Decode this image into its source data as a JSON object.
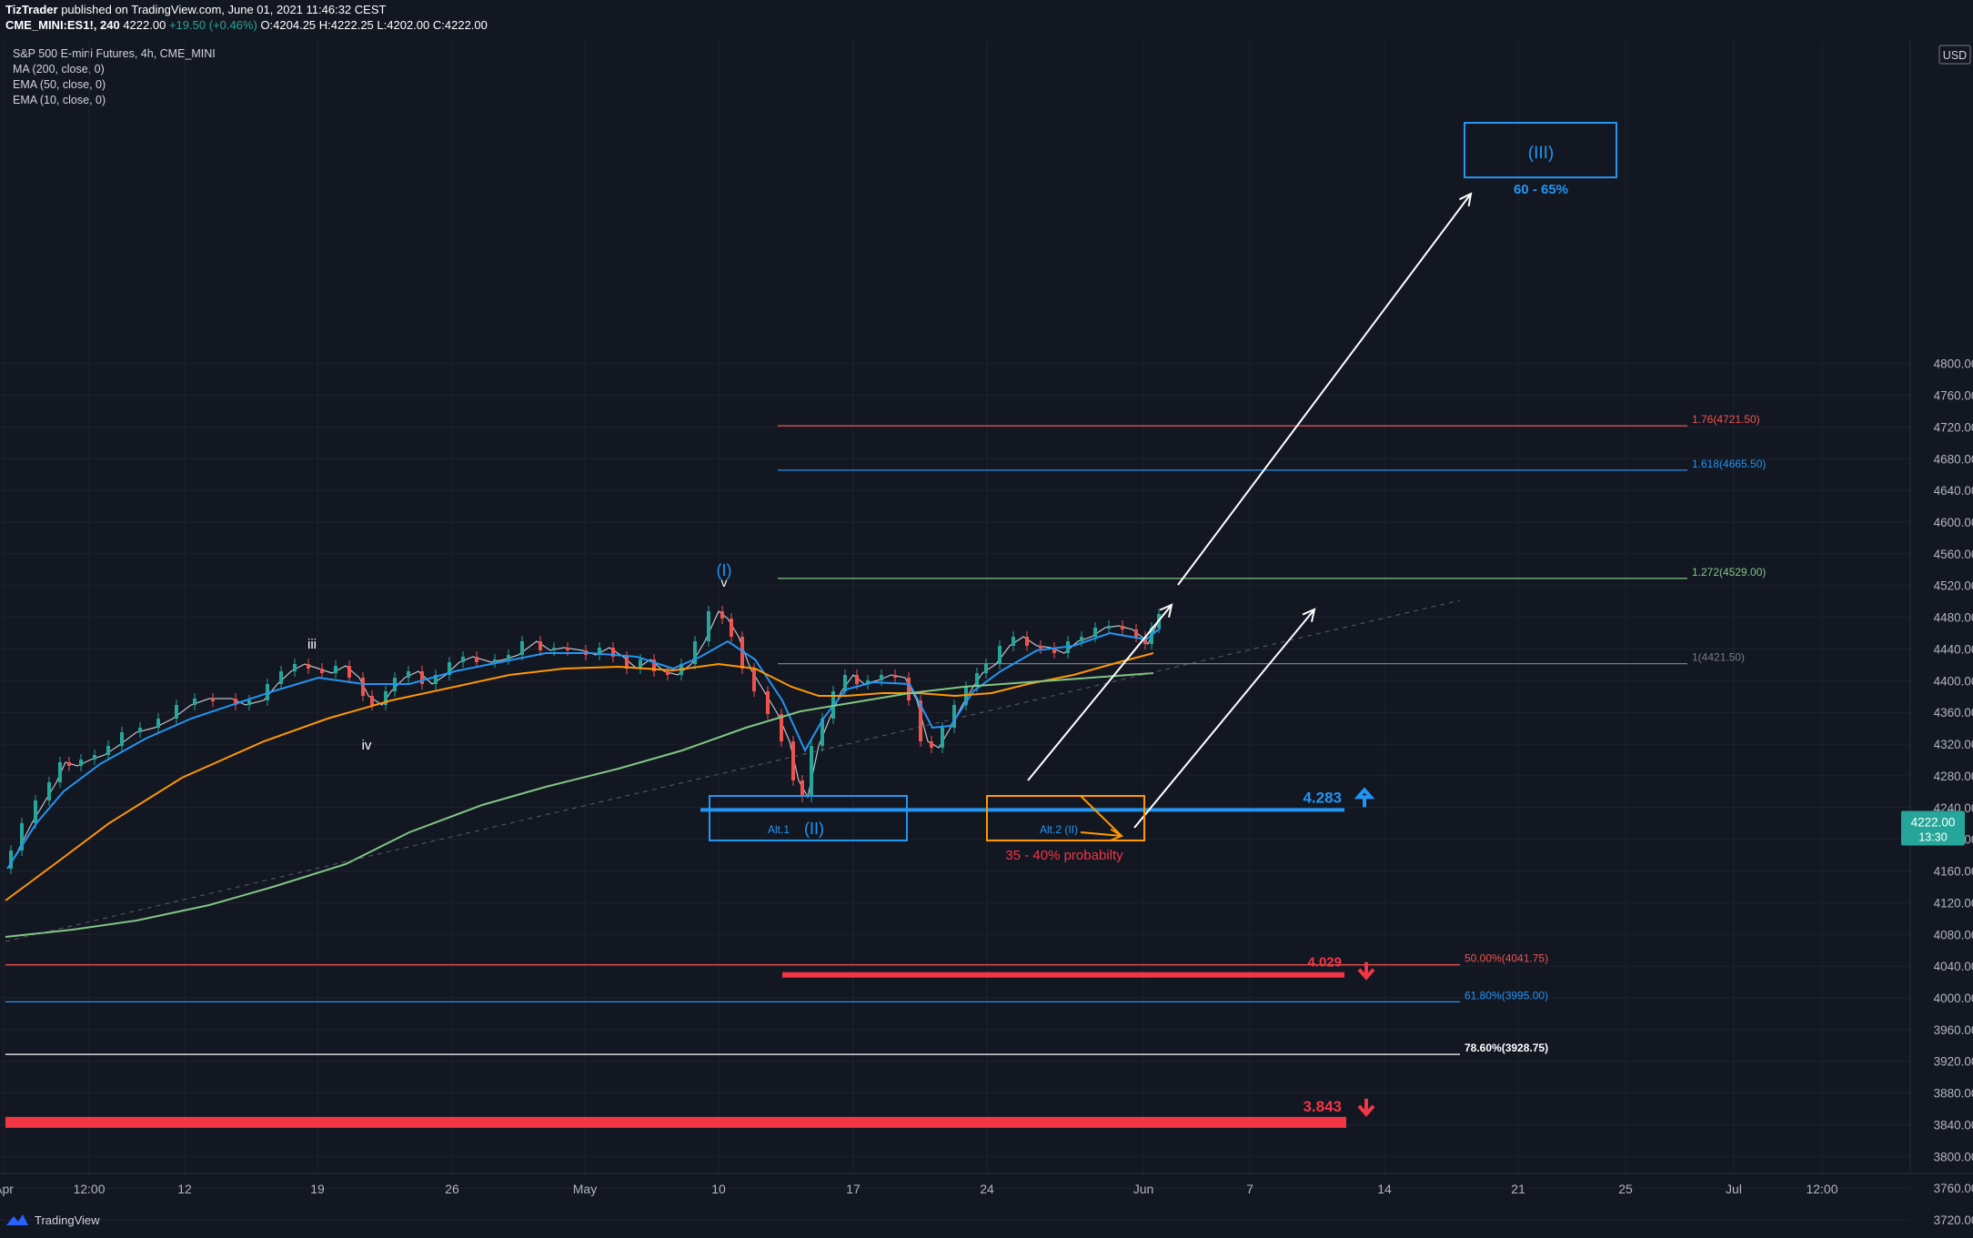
{
  "header": {
    "publisher": "TizTrader",
    "published_text": "published on TradingView.com, June 01, 2021 11:46:32 CEST",
    "symbol": "CME_MINI:ES1!, 240",
    "last": "4222.00",
    "change": "+19.50 (+0.46%)",
    "open_label": "O:",
    "open": "4204.25",
    "high_label": "H:",
    "high": "4222.25",
    "low_label": "L:",
    "low": "4202.00",
    "close_label": "C:",
    "close": "4222.00"
  },
  "legend": {
    "title": "S&P 500 E-mini Futures, 4h, CME_MINI",
    "indicators": [
      "MA (200, close, 0)",
      "EMA (50, close, 0)",
      "EMA (10, close, 0)"
    ]
  },
  "price_axis": {
    "currency": "USD",
    "ticks": [
      "4800.00",
      "4760.00",
      "4720.00",
      "4680.00",
      "4640.00",
      "4600.00",
      "4560.00",
      "4520.00",
      "4480.00",
      "4440.00",
      "4400.00",
      "4360.00",
      "4320.00",
      "4280.00",
      "4240.00",
      "4200.00",
      "4160.00",
      "4120.00",
      "4080.00",
      "4040.00",
      "4000.00",
      "3960.00",
      "3920.00",
      "3880.00",
      "3840.00",
      "3800.00",
      "3760.00",
      "3720.00"
    ],
    "current_price": "4222.00",
    "countdown": "13:30",
    "current_color": "#26a69a"
  },
  "time_axis": {
    "ticks": [
      "Apr",
      "12:00",
      "12",
      "19",
      "26",
      "May",
      "10",
      "17",
      "24",
      "Jun",
      "7",
      "14",
      "21",
      "25",
      "Jul",
      "12:00"
    ]
  },
  "annotations": {
    "fib_levels": [
      {
        "label": "1.76(4721.50)",
        "price": 4721.5,
        "color": "#ef5350"
      },
      {
        "label": "1.618(4665.50)",
        "price": 4665.5,
        "color": "#2196f3"
      },
      {
        "label": "1.272(4529.00)",
        "price": 4529.0,
        "color": "#81c784"
      },
      {
        "label": "1(4421.50)",
        "price": 4421.5,
        "color": "#787b86"
      },
      {
        "label": "50.00%(4041.75)",
        "price": 4041.75,
        "color": "#ef5350"
      },
      {
        "label": "61.80%(3995.00)",
        "price": 3995.0,
        "color": "#2196f3"
      },
      {
        "label": "78.60%(3928.75)",
        "price": 3928.75,
        "color": "#ffffff"
      }
    ],
    "resistance_label": "4.283",
    "support_label": "4.029",
    "low_support_label": "3.843",
    "wave_iii_target": "(III)",
    "target_probability": "60 - 65%",
    "wave_i": "(I)",
    "wave_v": "v",
    "wave_iii_small": "iii",
    "wave_iv_small": "iv",
    "wave_ii": "(II)",
    "alt1": "Alt.1",
    "alt2": "Alt.2 (II)",
    "alt2_probability": "35 - 40% probabilty"
  },
  "colors": {
    "background": "#131722",
    "grid": "#1e222d",
    "up": "#26a69a",
    "down": "#ef5350",
    "ema10": "#2196f3",
    "ema50": "#ff9800",
    "ma200": "#81c784",
    "accent_blue": "#2196f3",
    "accent_red": "#f23645",
    "accent_orange": "#ff9800"
  },
  "branding": "TradingView"
}
